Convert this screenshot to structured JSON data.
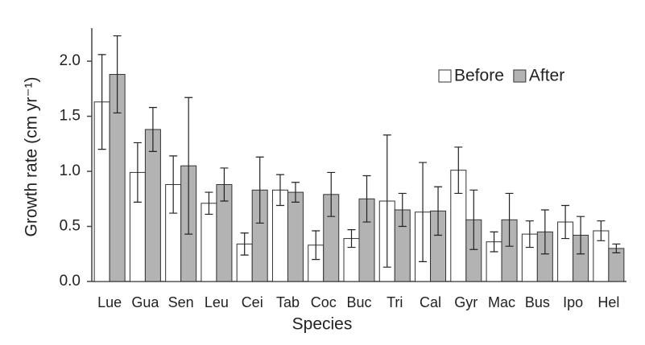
{
  "chart_data": {
    "type": "bar",
    "x_label": "Species",
    "y_label": "Growth rate (cm yr⁻¹)",
    "categories": [
      "Lue",
      "Gua",
      "Sen",
      "Leu",
      "Cei",
      "Tab",
      "Coc",
      "Buc",
      "Tri",
      "Cal",
      "Gyr",
      "Mac",
      "Bus",
      "Ipo",
      "Hel"
    ],
    "series": [
      {
        "name": "Before",
        "color": "#ffffff",
        "values": [
          1.63,
          0.99,
          0.88,
          0.71,
          0.34,
          0.83,
          0.33,
          0.39,
          0.73,
          0.63,
          1.01,
          0.36,
          0.43,
          0.54,
          0.46
        ],
        "errors": [
          0.43,
          0.27,
          0.26,
          0.1,
          0.1,
          0.14,
          0.13,
          0.08,
          0.6,
          0.45,
          0.21,
          0.09,
          0.12,
          0.15,
          0.09
        ]
      },
      {
        "name": "After",
        "color": "#b3b3b3",
        "values": [
          1.88,
          1.38,
          1.05,
          0.88,
          0.83,
          0.81,
          0.79,
          0.75,
          0.65,
          0.64,
          0.56,
          0.56,
          0.45,
          0.42,
          0.3
        ],
        "errors": [
          0.35,
          0.2,
          0.62,
          0.15,
          0.3,
          0.09,
          0.2,
          0.21,
          0.15,
          0.22,
          0.27,
          0.24,
          0.2,
          0.17,
          0.04
        ]
      }
    ],
    "ylim": [
      0,
      2.3
    ],
    "yticks": [
      {
        "value": 0,
        "label": "0.0"
      },
      0.5,
      {
        "value": 1,
        "label": "1.0"
      },
      1.5,
      {
        "value": 2,
        "label": "2.0"
      }
    ],
    "grid": false,
    "legend": "upper right"
  }
}
